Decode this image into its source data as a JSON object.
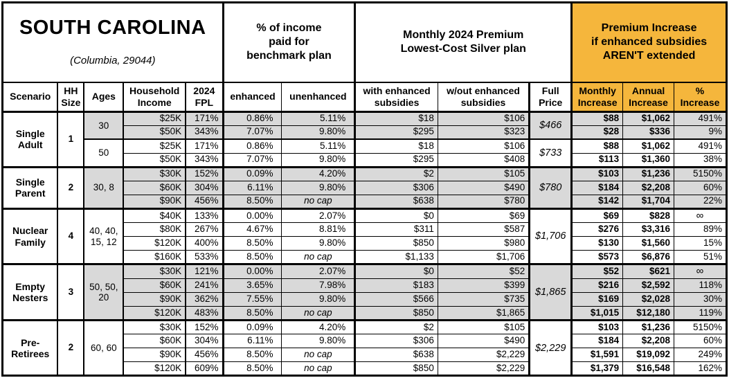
{
  "colors": {
    "accent_orange": "#F5B63C",
    "shade_gray": "#D9D9D9",
    "border": "#000000"
  },
  "chart_data": {
    "type": "table",
    "title": "SOUTH CAROLINA",
    "subtitle": "(Columbia, 29044)",
    "group_headers": {
      "income_pct": "% of income\npaid for\nbenchmark plan",
      "premium": "Monthly 2024 Premium\nLowest-Cost Silver plan",
      "increase": "Premium Increase\nif enhanced subsidies\nAREN'T extended"
    },
    "columns": [
      "Scenario",
      "HH Size",
      "Ages",
      "Household Income",
      "2024 FPL",
      "enhanced",
      "unenhanced",
      "with enhanced subsidies",
      "w/out enhanced subsidies",
      "Full Price",
      "Monthly Increase",
      "Annual Increase",
      "% Increase"
    ],
    "groups": [
      {
        "scenario": "Single Adult",
        "hh_size": "1",
        "blocks": [
          {
            "ages": "30",
            "shaded": true,
            "full_price": "$466",
            "rows": [
              {
                "income": "$25K",
                "fpl": "171%",
                "enhanced": "0.86%",
                "unenhanced": "5.11%",
                "with_sub": "$18",
                "wo_sub": "$106",
                "monthly": "$88",
                "annual": "$1,062",
                "pct_increase": "491%"
              },
              {
                "income": "$50K",
                "fpl": "343%",
                "enhanced": "7.07%",
                "unenhanced": "9.80%",
                "with_sub": "$295",
                "wo_sub": "$323",
                "monthly": "$28",
                "annual": "$336",
                "pct_increase": "9%"
              }
            ]
          },
          {
            "ages": "50",
            "shaded": false,
            "full_price": "$733",
            "rows": [
              {
                "income": "$25K",
                "fpl": "171%",
                "enhanced": "0.86%",
                "unenhanced": "5.11%",
                "with_sub": "$18",
                "wo_sub": "$106",
                "monthly": "$88",
                "annual": "$1,062",
                "pct_increase": "491%"
              },
              {
                "income": "$50K",
                "fpl": "343%",
                "enhanced": "7.07%",
                "unenhanced": "9.80%",
                "with_sub": "$295",
                "wo_sub": "$408",
                "monthly": "$113",
                "annual": "$1,360",
                "pct_increase": "38%"
              }
            ]
          }
        ]
      },
      {
        "scenario": "Single Parent",
        "hh_size": "2",
        "blocks": [
          {
            "ages": "30, 8",
            "shaded": true,
            "full_price": "$780",
            "rows": [
              {
                "income": "$30K",
                "fpl": "152%",
                "enhanced": "0.09%",
                "unenhanced": "4.20%",
                "with_sub": "$2",
                "wo_sub": "$105",
                "monthly": "$103",
                "annual": "$1,236",
                "pct_increase": "5150%"
              },
              {
                "income": "$60K",
                "fpl": "304%",
                "enhanced": "6.11%",
                "unenhanced": "9.80%",
                "with_sub": "$306",
                "wo_sub": "$490",
                "monthly": "$184",
                "annual": "$2,208",
                "pct_increase": "60%"
              },
              {
                "income": "$90K",
                "fpl": "456%",
                "enhanced": "8.50%",
                "unenhanced": "no cap",
                "with_sub": "$638",
                "wo_sub": "$780",
                "monthly": "$142",
                "annual": "$1,704",
                "pct_increase": "22%"
              }
            ]
          }
        ]
      },
      {
        "scenario": "Nuclear Family",
        "hh_size": "4",
        "blocks": [
          {
            "ages": "40, 40, 15, 12",
            "shaded": false,
            "full_price": "$1,706",
            "rows": [
              {
                "income": "$40K",
                "fpl": "133%",
                "enhanced": "0.00%",
                "unenhanced": "2.07%",
                "with_sub": "$0",
                "wo_sub": "$69",
                "monthly": "$69",
                "annual": "$828",
                "pct_increase": "∞"
              },
              {
                "income": "$80K",
                "fpl": "267%",
                "enhanced": "4.67%",
                "unenhanced": "8.81%",
                "with_sub": "$311",
                "wo_sub": "$587",
                "monthly": "$276",
                "annual": "$3,316",
                "pct_increase": "89%"
              },
              {
                "income": "$120K",
                "fpl": "400%",
                "enhanced": "8.50%",
                "unenhanced": "9.80%",
                "with_sub": "$850",
                "wo_sub": "$980",
                "monthly": "$130",
                "annual": "$1,560",
                "pct_increase": "15%"
              },
              {
                "income": "$160K",
                "fpl": "533%",
                "enhanced": "8.50%",
                "unenhanced": "no cap",
                "with_sub": "$1,133",
                "wo_sub": "$1,706",
                "monthly": "$573",
                "annual": "$6,876",
                "pct_increase": "51%"
              }
            ]
          }
        ]
      },
      {
        "scenario": "Empty Nesters",
        "hh_size": "3",
        "blocks": [
          {
            "ages": "50, 50, 20",
            "shaded": true,
            "full_price": "$1,865",
            "rows": [
              {
                "income": "$30K",
                "fpl": "121%",
                "enhanced": "0.00%",
                "unenhanced": "2.07%",
                "with_sub": "$0",
                "wo_sub": "$52",
                "monthly": "$52",
                "annual": "$621",
                "pct_increase": "∞"
              },
              {
                "income": "$60K",
                "fpl": "241%",
                "enhanced": "3.65%",
                "unenhanced": "7.98%",
                "with_sub": "$183",
                "wo_sub": "$399",
                "monthly": "$216",
                "annual": "$2,592",
                "pct_increase": "118%"
              },
              {
                "income": "$90K",
                "fpl": "362%",
                "enhanced": "7.55%",
                "unenhanced": "9.80%",
                "with_sub": "$566",
                "wo_sub": "$735",
                "monthly": "$169",
                "annual": "$2,028",
                "pct_increase": "30%"
              },
              {
                "income": "$120K",
                "fpl": "483%",
                "enhanced": "8.50%",
                "unenhanced": "no cap",
                "with_sub": "$850",
                "wo_sub": "$1,865",
                "monthly": "$1,015",
                "annual": "$12,180",
                "pct_increase": "119%"
              }
            ]
          }
        ]
      },
      {
        "scenario": "Pre-Retirees",
        "hh_size": "2",
        "blocks": [
          {
            "ages": "60, 60",
            "shaded": false,
            "full_price": "$2,229",
            "rows": [
              {
                "income": "$30K",
                "fpl": "152%",
                "enhanced": "0.09%",
                "unenhanced": "4.20%",
                "with_sub": "$2",
                "wo_sub": "$105",
                "monthly": "$103",
                "annual": "$1,236",
                "pct_increase": "5150%"
              },
              {
                "income": "$60K",
                "fpl": "304%",
                "enhanced": "6.11%",
                "unenhanced": "9.80%",
                "with_sub": "$306",
                "wo_sub": "$490",
                "monthly": "$184",
                "annual": "$2,208",
                "pct_increase": "60%"
              },
              {
                "income": "$90K",
                "fpl": "456%",
                "enhanced": "8.50%",
                "unenhanced": "no cap",
                "with_sub": "$638",
                "wo_sub": "$2,229",
                "monthly": "$1,591",
                "annual": "$19,092",
                "pct_increase": "249%"
              },
              {
                "income": "$120K",
                "fpl": "609%",
                "enhanced": "8.50%",
                "unenhanced": "no cap",
                "with_sub": "$850",
                "wo_sub": "$2,229",
                "monthly": "$1,379",
                "annual": "$16,548",
                "pct_increase": "162%"
              }
            ]
          }
        ]
      }
    ]
  }
}
